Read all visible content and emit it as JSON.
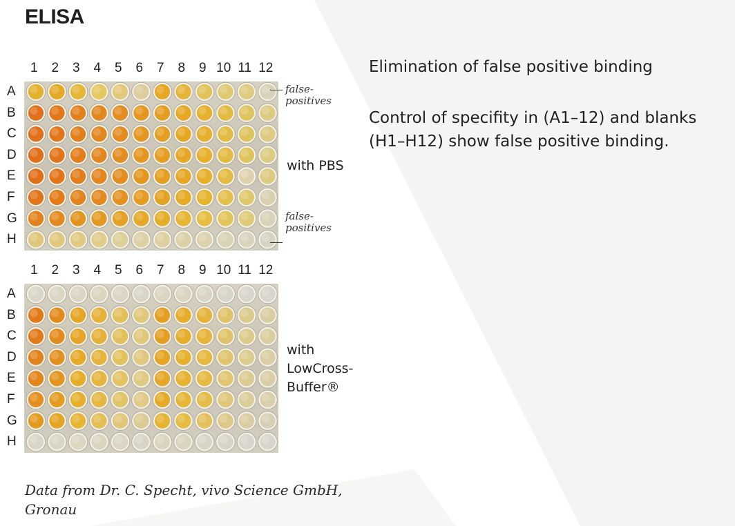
{
  "title": "ELISA",
  "columns": [
    "1",
    "2",
    "3",
    "4",
    "5",
    "6",
    "7",
    "8",
    "9",
    "10",
    "11",
    "12"
  ],
  "rows": [
    "A",
    "B",
    "C",
    "D",
    "E",
    "F",
    "G",
    "H"
  ],
  "plate_top": {
    "label": "with PBS",
    "false_positive_top": [
      "false-",
      "positives"
    ],
    "false_positive_bottom": [
      "false-",
      "positives"
    ],
    "wells": [
      [
        "#e3b12c",
        "#e4aa26",
        "#e5b638",
        "#e6c760",
        "#e2c97a",
        "#ddcd9a",
        "#e6a723",
        "#e7b43a",
        "#e2c35a",
        "#e0c96f",
        "#dccb80",
        "#d8d2b8"
      ],
      [
        "#e2701a",
        "#e37618",
        "#e2801b",
        "#e2861f",
        "#e38d20",
        "#e5961f",
        "#e49f22",
        "#e6a824",
        "#e7b02c",
        "#e3bb42",
        "#dfc45e",
        "#dccb80"
      ],
      [
        "#e2701a",
        "#e37618",
        "#e2801b",
        "#e2861f",
        "#e38d20",
        "#e5961f",
        "#e49f22",
        "#e6a824",
        "#e7b02c",
        "#e3bb42",
        "#dfc45e",
        "#dccb80"
      ],
      [
        "#e26e19",
        "#e37418",
        "#e27e1b",
        "#e3861e",
        "#e38d20",
        "#e5961f",
        "#e49f22",
        "#e6a824",
        "#e7b02c",
        "#e3bb42",
        "#dfc45e",
        "#dccb80"
      ],
      [
        "#e26e19",
        "#e37418",
        "#e27e1b",
        "#e3861e",
        "#e38d20",
        "#e5961f",
        "#e49f22",
        "#e6a824",
        "#e7b02c",
        "#e3bb42",
        "#ded2ae",
        "#dccb80"
      ],
      [
        "#e27519",
        "#e37b18",
        "#e2841c",
        "#e38a1f",
        "#e39120",
        "#e59a20",
        "#e4a223",
        "#e6aa25",
        "#e7b42f",
        "#e3c04c",
        "#dfc86c",
        "#d9d0b0"
      ],
      [
        "#e2841d",
        "#e38a1e",
        "#e3941f",
        "#e39a20",
        "#e4a123",
        "#e6a826",
        "#e5ae29",
        "#e6b532",
        "#e6bd3f",
        "#e2c45a",
        "#dfcb78",
        "#d8d2b8"
      ],
      [
        "#e0c67a",
        "#e0c87c",
        "#e0ca82",
        "#dfcc8a",
        "#ddcf98",
        "#dcd0a4",
        "#dccfa0",
        "#dcd0a8",
        "#dcd2b0",
        "#dad2b4",
        "#d8d3bc",
        "#d6d3c2"
      ]
    ]
  },
  "plate_bottom": {
    "label": [
      "with",
      "LowCross-",
      "Buffer®"
    ],
    "wells": [
      [
        "#d9d6c8",
        "#dad6c6",
        "#dbd5c2",
        "#dbd5c0",
        "#dad5c4",
        "#d9d5c6",
        "#dad4c0",
        "#dad4c0",
        "#d9d5c6",
        "#d8d5c8",
        "#d8d5ca",
        "#d7d5cc"
      ],
      [
        "#e37a1a",
        "#e38a1d",
        "#e6a525",
        "#e6b138",
        "#e3c05a",
        "#e1c77a",
        "#e49f22",
        "#e6ad2a",
        "#e6b43a",
        "#e1c26a",
        "#dccb8a",
        "#dacea0"
      ],
      [
        "#e37a1a",
        "#e38a1d",
        "#e6a525",
        "#e6b138",
        "#e3c05a",
        "#e1c77a",
        "#e49f22",
        "#e6ad2a",
        "#e6b43a",
        "#e1c26a",
        "#dccb8a",
        "#dacea0"
      ],
      [
        "#e2821b",
        "#e3911e",
        "#e6aa27",
        "#e6b43c",
        "#e3c25e",
        "#e0c87e",
        "#e5a424",
        "#e6b12d",
        "#e7b83e",
        "#e1c46e",
        "#dccc8e",
        "#dacea4"
      ],
      [
        "#e2861c",
        "#e3951f",
        "#e6ad29",
        "#e6b53e",
        "#e3c362",
        "#e0c982",
        "#e5a725",
        "#e6b32f",
        "#e6b940",
        "#e1c572",
        "#dccc92",
        "#dacea8"
      ],
      [
        "#e38e1e",
        "#e39b20",
        "#e6b02c",
        "#e5b844",
        "#e2c468",
        "#dfca88",
        "#e5ab27",
        "#e6b634",
        "#e5bc48",
        "#e0c67a",
        "#dbcd98",
        "#d9cfac"
      ],
      [
        "#e39a20",
        "#e4a424",
        "#e6b534",
        "#e3be52",
        "#e0c678",
        "#dcca94",
        "#e5b432",
        "#e5bb40",
        "#e3c05a",
        "#dec88a",
        "#dacda4",
        "#d8cfb4"
      ],
      [
        "#d9d6c8",
        "#dad6c6",
        "#dbd5c2",
        "#dbd5c0",
        "#dad5c4",
        "#d9d5c6",
        "#dad4c0",
        "#dad4c0",
        "#d9d5c6",
        "#d8d5c8",
        "#d8d5ca",
        "#d7d5cc"
      ]
    ]
  },
  "heading": "Elimination of false positive binding",
  "description": [
    "Control of specifity in (A1–12) and blanks",
    "(H1–H12) show false positive binding."
  ],
  "credit": [
    "Data from Dr. C. Specht, vivo Science GmbH,",
    "Gronau"
  ]
}
